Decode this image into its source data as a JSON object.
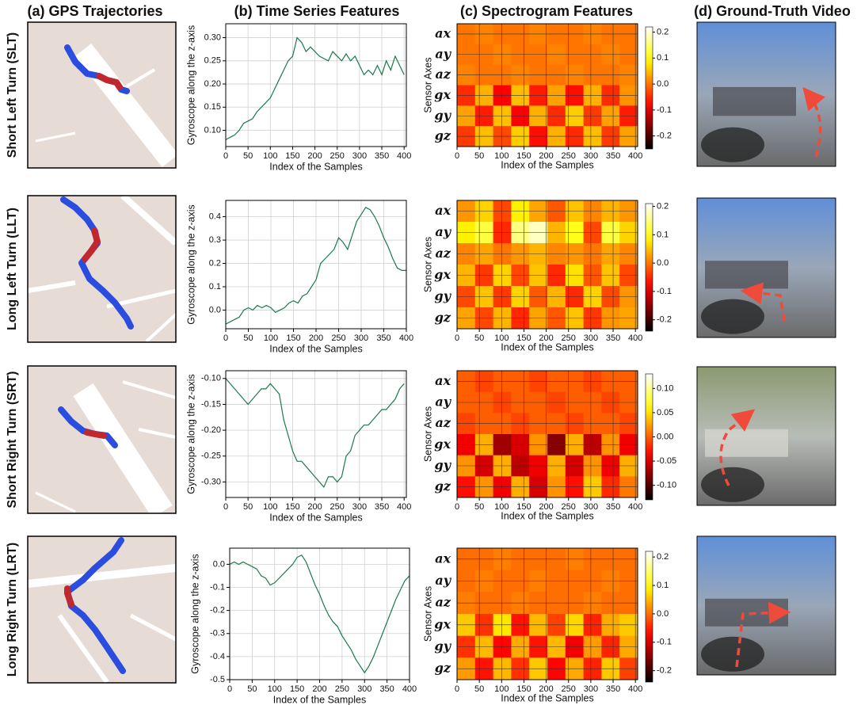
{
  "headers": [
    "(a) GPS Trajectories",
    "(b) Time Series Features",
    "(c) Spectrogram Features",
    "(d) Ground-Truth Video"
  ],
  "rows": [
    {
      "label": "Short Left Turn (SLT)",
      "time_series": {
        "type": "line",
        "ylabel": "Gyroscope along the z-axis",
        "xlabel": "Index of the Samples",
        "color": "#1a7a4a",
        "grid": true,
        "x": [
          0,
          10,
          20,
          30,
          40,
          50,
          60,
          70,
          80,
          90,
          100,
          110,
          120,
          130,
          140,
          150,
          160,
          170,
          180,
          190,
          200,
          210,
          220,
          230,
          240,
          250,
          260,
          270,
          280,
          290,
          300,
          310,
          320,
          330,
          340,
          350,
          360,
          370,
          380,
          390,
          400
        ],
        "values": [
          0.08,
          0.085,
          0.09,
          0.1,
          0.115,
          0.12,
          0.125,
          0.14,
          0.15,
          0.16,
          0.17,
          0.19,
          0.21,
          0.23,
          0.25,
          0.26,
          0.3,
          0.29,
          0.27,
          0.28,
          0.27,
          0.26,
          0.255,
          0.25,
          0.27,
          0.26,
          0.25,
          0.265,
          0.25,
          0.26,
          0.24,
          0.22,
          0.23,
          0.22,
          0.24,
          0.22,
          0.25,
          0.23,
          0.26,
          0.24,
          0.22
        ],
        "xlim": [
          0,
          405
        ],
        "xticks": [
          0,
          50,
          100,
          150,
          200,
          250,
          300,
          350,
          400
        ],
        "ylim": [
          0.065,
          0.33
        ],
        "yticks": [
          {
            "value": 0.1,
            "label": "0.10"
          },
          0.15,
          {
            "value": 0.2,
            "label": "0.20"
          },
          0.25,
          {
            "value": 0.3,
            "label": "0.30"
          }
        ]
      },
      "spectrogram": {
        "type": "heatmap",
        "ylabel": "Sensor Axes",
        "xlabel": "Index of the Samples",
        "colormap": "hot",
        "categories": [
          "ax",
          "ay",
          "az",
          "gx",
          "gy",
          "gz"
        ],
        "values": [
          [
            0,
            0.01,
            0,
            0,
            0.01,
            0,
            0,
            0.01,
            0,
            0
          ],
          [
            0,
            0,
            0.01,
            0,
            0,
            0.01,
            0,
            0,
            0.01,
            0
          ],
          [
            0.01,
            0,
            0,
            0.01,
            0,
            0,
            0.01,
            0,
            0,
            0.01
          ],
          [
            -0.05,
            0.04,
            -0.08,
            0.05,
            -0.06,
            0.03,
            -0.07,
            0.04,
            -0.05,
            0.02
          ],
          [
            0.03,
            -0.06,
            0.05,
            -0.08,
            0.04,
            -0.05,
            0.06,
            -0.04,
            0.03,
            -0.06
          ],
          [
            -0.04,
            0.05,
            -0.03,
            0.06,
            -0.07,
            0.04,
            -0.05,
            0.05,
            -0.04,
            0.03
          ]
        ],
        "xlim": [
          0,
          405
        ],
        "xticks": [
          0,
          50,
          100,
          150,
          200,
          250,
          300,
          350,
          400
        ],
        "clim": [
          -0.25,
          0.22
        ],
        "cticks": [
          0.2,
          0.1,
          {
            "value": 0,
            "label": "0.0"
          },
          -0.1,
          -0.2
        ]
      }
    },
    {
      "label": "Long Left Turn (LLT)",
      "time_series": {
        "type": "line",
        "ylabel": "Gyroscope along the z-axis",
        "xlabel": "Index of the Samples",
        "color": "#1a7a4a",
        "grid": true,
        "x": [
          0,
          10,
          20,
          30,
          40,
          50,
          60,
          70,
          80,
          90,
          100,
          110,
          120,
          130,
          140,
          150,
          160,
          170,
          180,
          190,
          200,
          210,
          220,
          230,
          240,
          250,
          260,
          270,
          280,
          290,
          300,
          310,
          320,
          330,
          340,
          350,
          360,
          370,
          380,
          390,
          400
        ],
        "values": [
          -0.06,
          -0.05,
          -0.04,
          -0.03,
          0,
          0.01,
          0,
          0.02,
          0.01,
          0.02,
          0.01,
          -0.01,
          0,
          0.01,
          0.03,
          0.04,
          0.03,
          0.06,
          0.07,
          0.1,
          0.13,
          0.2,
          0.22,
          0.24,
          0.26,
          0.31,
          0.29,
          0.26,
          0.32,
          0.38,
          0.41,
          0.44,
          0.43,
          0.4,
          0.36,
          0.31,
          0.27,
          0.22,
          0.18,
          0.17,
          0.17
        ],
        "xlim": [
          0,
          400
        ],
        "xticks": [
          0,
          50,
          100,
          150,
          200,
          250,
          300,
          350,
          400
        ],
        "ylim": [
          -0.08,
          0.47
        ],
        "yticks": [
          {
            "value": 0,
            "label": "0.0"
          },
          0.1,
          0.2,
          0.3,
          0.4
        ]
      },
      "spectrogram": {
        "type": "heatmap",
        "ylabel": "Sensor Axes",
        "xlabel": "Index of the Samples",
        "colormap": "hot",
        "categories": [
          "ax",
          "ay",
          "az",
          "gx",
          "gy",
          "gz"
        ],
        "values": [
          [
            0.02,
            0.06,
            -0.03,
            0.08,
            0.03,
            -0.02,
            0.05,
            0.01,
            0.04,
            0.02
          ],
          [
            0.08,
            0.12,
            -0.05,
            0.15,
            0.18,
            0.04,
            0.1,
            -0.03,
            0.12,
            0.06
          ],
          [
            0.01,
            0.03,
            0,
            0.02,
            0.04,
            0.01,
            0.02,
            0,
            0.03,
            0.01
          ],
          [
            0.04,
            -0.04,
            0.06,
            -0.03,
            0.05,
            -0.05,
            0.07,
            -0.02,
            0.05,
            -0.03
          ],
          [
            -0.03,
            0.05,
            -0.04,
            0.06,
            -0.02,
            0.04,
            -0.05,
            0.06,
            -0.03,
            0.02
          ],
          [
            0.03,
            -0.03,
            0.04,
            -0.05,
            0.03,
            -0.02,
            0.05,
            -0.04,
            0.02,
            0.03
          ]
        ],
        "xlim": [
          0,
          405
        ],
        "xticks": [
          0,
          50,
          100,
          150,
          200,
          250,
          300,
          350,
          400
        ],
        "clim": [
          -0.24,
          0.21
        ],
        "cticks": [
          0.2,
          0.1,
          {
            "value": 0,
            "label": "0.0"
          },
          -0.1,
          -0.2
        ]
      }
    },
    {
      "label": "Short Right Turn (SRT)",
      "time_series": {
        "type": "line",
        "ylabel": "Gyroscope along the z-axis",
        "xlabel": "Index of the Samples",
        "color": "#1a7a4a",
        "grid": true,
        "x": [
          0,
          10,
          20,
          30,
          40,
          50,
          60,
          70,
          80,
          90,
          100,
          110,
          120,
          130,
          140,
          150,
          160,
          170,
          180,
          190,
          200,
          210,
          220,
          230,
          240,
          250,
          260,
          270,
          280,
          290,
          300,
          310,
          320,
          330,
          340,
          350,
          360,
          370,
          380,
          390,
          400
        ],
        "values": [
          -0.1,
          -0.11,
          -0.12,
          -0.13,
          -0.14,
          -0.15,
          -0.14,
          -0.13,
          -0.12,
          -0.12,
          -0.11,
          -0.12,
          -0.13,
          -0.18,
          -0.21,
          -0.24,
          -0.26,
          -0.26,
          -0.27,
          -0.28,
          -0.29,
          -0.3,
          -0.31,
          -0.29,
          -0.29,
          -0.3,
          -0.29,
          -0.25,
          -0.24,
          -0.21,
          -0.2,
          -0.19,
          -0.19,
          -0.18,
          -0.17,
          -0.16,
          -0.16,
          -0.15,
          -0.14,
          -0.12,
          -0.11
        ],
        "xlim": [
          0,
          405
        ],
        "xticks": [
          0,
          50,
          100,
          150,
          200,
          250,
          300,
          350,
          400
        ],
        "ylim": [
          -0.33,
          -0.085
        ],
        "yticks": [
          {
            "value": -0.1,
            "label": "-0.10"
          },
          -0.15,
          {
            "value": -0.2,
            "label": "-0.20"
          },
          -0.25,
          {
            "value": -0.3,
            "label": "-0.30"
          }
        ]
      },
      "spectrogram": {
        "type": "heatmap",
        "ylabel": "Sensor Axes",
        "xlabel": "Index of the Samples",
        "colormap": "hot",
        "categories": [
          "ax",
          "ay",
          "az",
          "gx",
          "gy",
          "gz"
        ],
        "values": [
          [
            0,
            -0.01,
            0,
            0,
            -0.01,
            0,
            0,
            -0.01,
            0,
            0
          ],
          [
            0,
            0,
            -0.01,
            0,
            0,
            -0.01,
            0,
            0,
            -0.01,
            0
          ],
          [
            -0.01,
            0,
            0,
            -0.01,
            0,
            0,
            -0.01,
            0,
            0,
            -0.01
          ],
          [
            -0.04,
            0.03,
            -0.07,
            -0.05,
            0.02,
            -0.08,
            0.03,
            -0.06,
            0.02,
            -0.04
          ],
          [
            0.02,
            -0.05,
            0.03,
            -0.06,
            -0.04,
            0.03,
            -0.05,
            0.02,
            -0.04,
            0.03
          ],
          [
            -0.03,
            0.02,
            -0.04,
            0.03,
            -0.05,
            0.02,
            -0.03,
            0.04,
            -0.02,
            0.01
          ]
        ],
        "xlim": [
          0,
          405
        ],
        "xticks": [
          0,
          50,
          100,
          150,
          200,
          250,
          300,
          350,
          400
        ],
        "clim": [
          -0.13,
          0.13
        ],
        "cticks": [
          {
            "value": 0.1,
            "label": "0.10"
          },
          0.05,
          {
            "value": 0,
            "label": "0.00"
          },
          -0.05,
          {
            "value": -0.1,
            "label": "-0.10"
          }
        ]
      }
    },
    {
      "label": "Long Right Turn (LRT)",
      "time_series": {
        "type": "line",
        "ylabel": "Gyroscope along the z-axis",
        "xlabel": "Index of the Samples",
        "color": "#1a7a4a",
        "grid": true,
        "x": [
          0,
          10,
          20,
          30,
          40,
          50,
          60,
          70,
          80,
          90,
          100,
          110,
          120,
          130,
          140,
          150,
          160,
          170,
          180,
          190,
          200,
          210,
          220,
          230,
          240,
          250,
          260,
          270,
          280,
          290,
          300,
          310,
          320,
          330,
          340,
          350,
          360,
          370,
          380,
          390,
          400
        ],
        "values": [
          0,
          0.01,
          0,
          0.01,
          0,
          -0.01,
          -0.02,
          -0.05,
          -0.06,
          -0.09,
          -0.08,
          -0.06,
          -0.04,
          -0.02,
          0,
          0.03,
          0.04,
          0.01,
          -0.04,
          -0.09,
          -0.13,
          -0.18,
          -0.22,
          -0.25,
          -0.27,
          -0.31,
          -0.34,
          -0.37,
          -0.41,
          -0.44,
          -0.47,
          -0.44,
          -0.4,
          -0.35,
          -0.3,
          -0.25,
          -0.2,
          -0.15,
          -0.11,
          -0.07,
          -0.05
        ],
        "xlim": [
          0,
          400
        ],
        "xticks": [
          0,
          50,
          100,
          150,
          200,
          250,
          300,
          350,
          400
        ],
        "ylim": [
          -0.5,
          0.07
        ],
        "yticks": [
          {
            "value": 0,
            "label": "0.0"
          },
          -0.1,
          -0.2,
          -0.3,
          -0.4,
          -0.5
        ]
      },
      "spectrogram": {
        "type": "heatmap",
        "ylabel": "Sensor Axes",
        "xlabel": "Index of the Samples",
        "colormap": "hot",
        "categories": [
          "ax",
          "ay",
          "az",
          "gx",
          "gy",
          "gz"
        ],
        "values": [
          [
            0,
            0,
            0.01,
            0,
            0,
            0,
            0.01,
            0,
            0,
            0
          ],
          [
            0,
            0.01,
            0,
            0,
            0.01,
            0,
            0,
            0,
            0.01,
            0
          ],
          [
            0.01,
            0,
            0,
            0.01,
            0,
            0,
            0,
            0.01,
            0,
            0
          ],
          [
            0.06,
            -0.04,
            0.08,
            -0.06,
            0.05,
            -0.03,
            0.07,
            -0.05,
            0.04,
            0.06
          ],
          [
            -0.04,
            0.05,
            -0.07,
            0.04,
            -0.06,
            0.05,
            -0.08,
            0.03,
            -0.05,
            0.04
          ],
          [
            0.03,
            -0.06,
            0.05,
            -0.04,
            0.06,
            -0.07,
            0.04,
            -0.05,
            0.06,
            -0.03
          ]
        ],
        "xlim": [
          0,
          405
        ],
        "xticks": [
          0,
          50,
          100,
          150,
          200,
          250,
          300,
          350,
          400
        ],
        "clim": [
          -0.24,
          0.22
        ],
        "cticks": [
          0.2,
          0.1,
          {
            "value": 0,
            "label": "0.0"
          },
          -0.1,
          -0.2
        ]
      }
    }
  ]
}
